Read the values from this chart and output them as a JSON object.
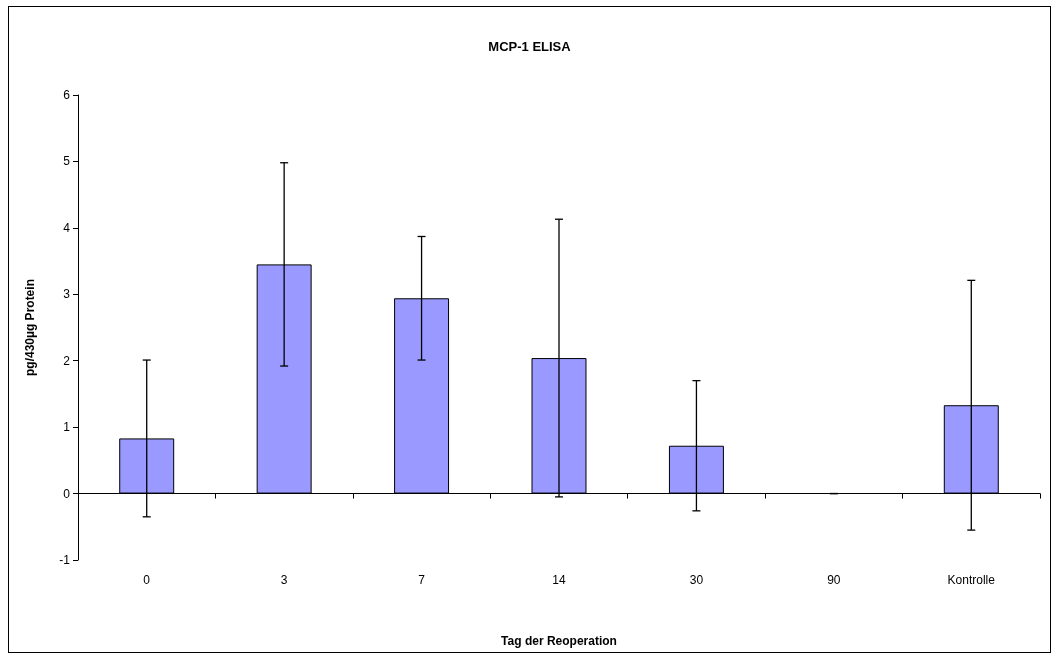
{
  "chart_data": {
    "type": "bar",
    "title": "MCP-1 ELISA",
    "xlabel": "Tag der Reoperation",
    "ylabel": "pg/430µg Protein",
    "categories": [
      "0",
      "3",
      "7",
      "14",
      "30",
      "90",
      "Kontrolle"
    ],
    "values": [
      0.83,
      3.45,
      2.94,
      2.04,
      0.72,
      0,
      1.33
    ],
    "errors": [
      1.18,
      1.53,
      0.93,
      2.09,
      0.98,
      0,
      1.88
    ],
    "color": "#9999ff",
    "ylim": [
      -1,
      6
    ],
    "yticks": [
      -1,
      0,
      1,
      2,
      3,
      4,
      5,
      6
    ]
  }
}
